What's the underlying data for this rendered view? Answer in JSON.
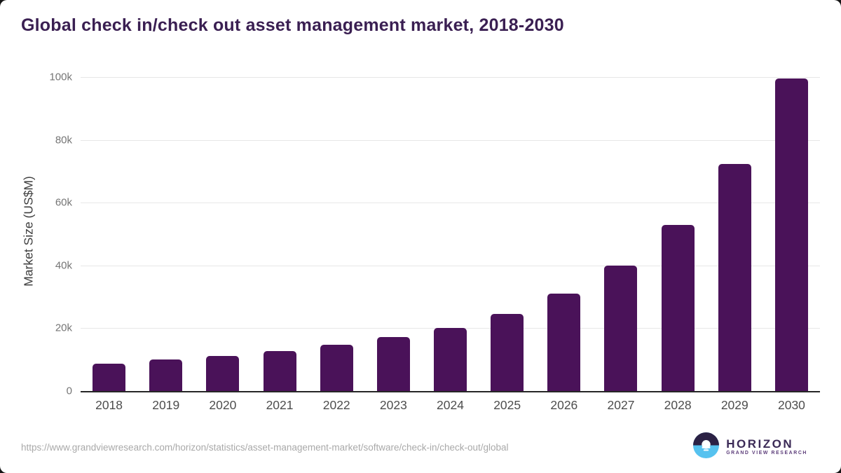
{
  "header": {
    "title": "Global check in/check out asset management market, 2018-2030",
    "title_color": "#3a1f52"
  },
  "chart_data": {
    "type": "bar",
    "title": "Global check in/check out asset management market, 2018-2030",
    "categories": [
      "2018",
      "2019",
      "2020",
      "2021",
      "2022",
      "2023",
      "2024",
      "2025",
      "2026",
      "2027",
      "2028",
      "2029",
      "2030"
    ],
    "values": [
      8600,
      10000,
      11200,
      12700,
      14700,
      17100,
      20200,
      24600,
      31000,
      39900,
      52900,
      72300,
      99600
    ],
    "xlabel": "",
    "ylabel": "Market Size (US$M)",
    "ylim": [
      0,
      100000
    ],
    "yticks": [
      {
        "value": 0,
        "label": "0"
      },
      {
        "value": 20000,
        "label": "20k"
      },
      {
        "value": 40000,
        "label": "40k"
      },
      {
        "value": 60000,
        "label": "60k"
      },
      {
        "value": 80000,
        "label": "80k"
      },
      {
        "value": 100000,
        "label": "100k"
      }
    ],
    "grid": "horizontal",
    "legend": "none",
    "bar_color": "#4a1259"
  },
  "footer": {
    "source_url": "https://www.grandviewresearch.com/horizon/statistics/asset-management-market/software/check-in/check-out/global",
    "logo": {
      "name": "HORIZON",
      "subtext": "GRAND VIEW RESEARCH",
      "name_color": "#3b2a56",
      "subtext_color": "#5c3d7a",
      "icon_top_color": "#2b2144",
      "icon_bottom_color": "#56c2ef"
    }
  }
}
